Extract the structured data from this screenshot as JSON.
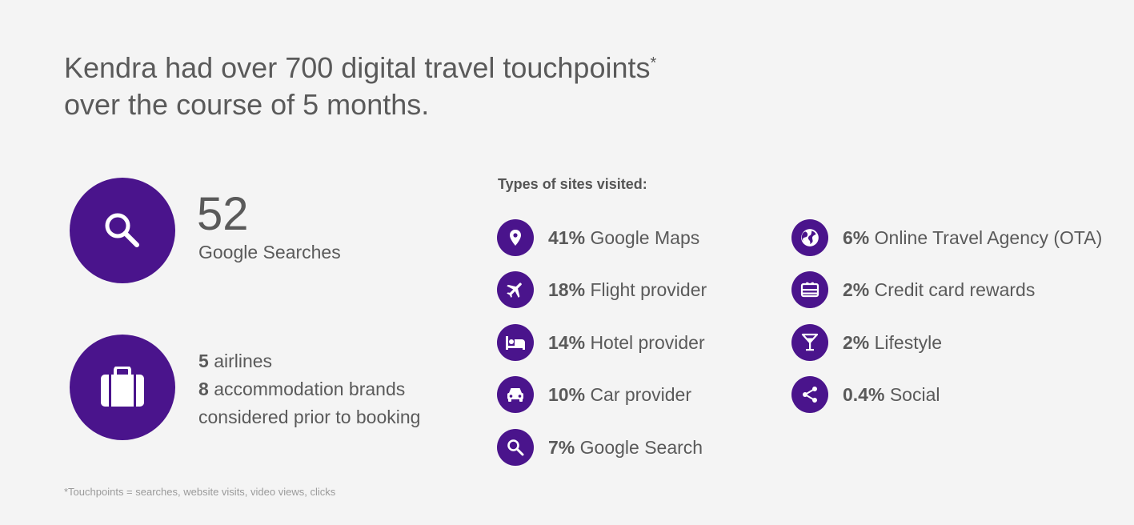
{
  "title": {
    "line1": "Kendra had over 700 digital travel touchpoints",
    "asterisk": "*",
    "line2": "over the course of 5 months."
  },
  "stats": {
    "searches_value": "52",
    "searches_label": "Google Searches",
    "airlines_count": "5",
    "airlines_label": "airlines",
    "accommodation_count": "8",
    "accommodation_label": "accommodation brands",
    "considered_label": "considered prior to booking"
  },
  "types": {
    "heading": "Types of sites visited:",
    "items": [
      {
        "pct": "41%",
        "label": "Google Maps",
        "icon": "map-pin-icon"
      },
      {
        "pct": "18%",
        "label": "Flight provider",
        "icon": "airplane-icon"
      },
      {
        "pct": "14%",
        "label": "Hotel provider",
        "icon": "bed-icon"
      },
      {
        "pct": "10%",
        "label": "Car provider",
        "icon": "car-icon"
      },
      {
        "pct": "7%",
        "label": "Google Search",
        "icon": "search-icon"
      },
      {
        "pct": "6%",
        "label": "Online Travel Agency (OTA)",
        "icon": "globe-icon"
      },
      {
        "pct": "2%",
        "label": "Credit card rewards",
        "icon": "gift-card-icon"
      },
      {
        "pct": "2%",
        "label": "Lifestyle",
        "icon": "cocktail-icon"
      },
      {
        "pct": "0.4%",
        "label": "Social",
        "icon": "share-icon"
      }
    ]
  },
  "footnote": "*Touchpoints = searches, website visits, video views, clicks",
  "colors": {
    "accent": "#4a148c",
    "background": "#f4f4f4",
    "text": "#5a5a5a"
  }
}
